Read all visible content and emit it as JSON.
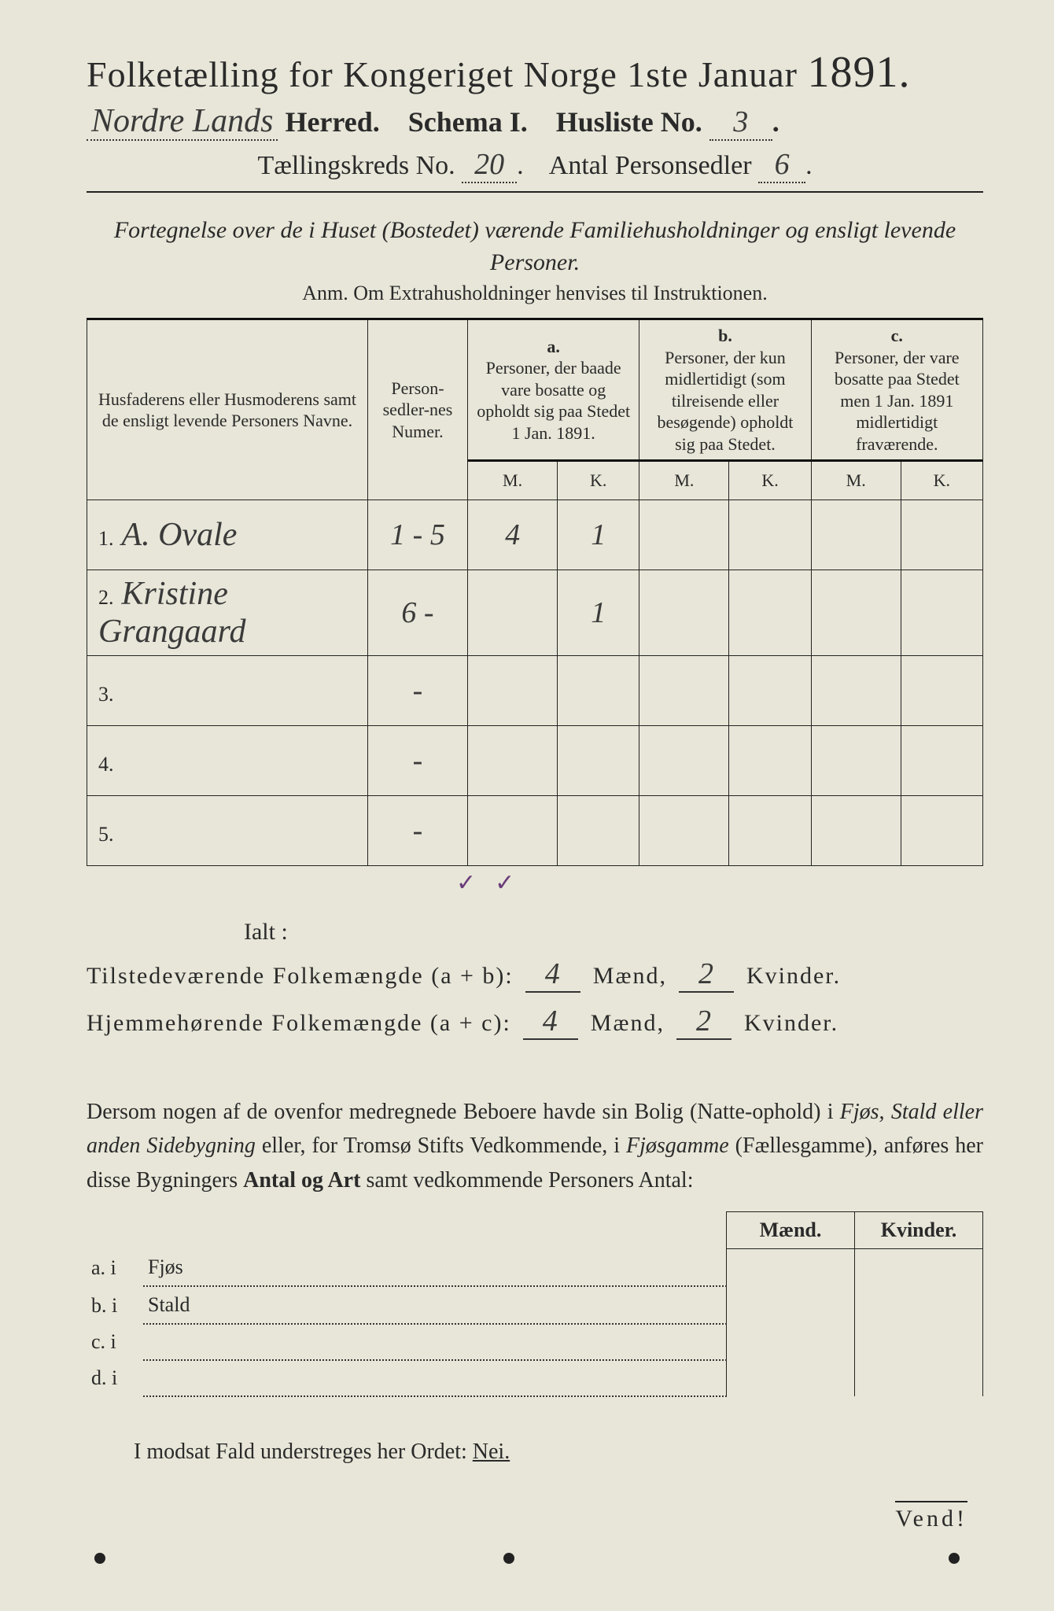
{
  "header": {
    "title_prefix": "Folketælling for Kongeriget Norge 1ste Januar",
    "year": "1891.",
    "herred_hand": "Nordre Lands",
    "herred_label": "Herred.",
    "schema_label": "Schema I.",
    "husliste_label": "Husliste No.",
    "husliste_no": "3",
    "kreds_label": "Tællingskreds No.",
    "kreds_no": "20",
    "personsedler_label": "Antal Personsedler",
    "personsedler_no": "6"
  },
  "subhead": {
    "line": "Fortegnelse over de i Huset (Bostedet) værende Familiehusholdninger og ensligt levende Personer.",
    "anm": "Anm.  Om Extrahusholdninger henvises til Instruktionen."
  },
  "table": {
    "col_name": "Husfaderens eller Husmoderens samt de ensligt levende Personers Navne.",
    "col_num": "Person-sedler-nes Numer.",
    "a_label": "a.",
    "a_text": "Personer, der baade vare bosatte og opholdt sig paa Stedet 1 Jan. 1891.",
    "b_label": "b.",
    "b_text": "Personer, der kun midlertidigt (som tilreisende eller besøgende) opholdt sig paa Stedet.",
    "c_label": "c.",
    "c_text": "Personer, der vare bosatte paa Stedet men 1 Jan. 1891 midlertidigt fraværende.",
    "m": "M.",
    "k": "K.",
    "rows": [
      {
        "n": "1.",
        "name": "A. Ovale",
        "num": "1 - 5",
        "am": "4",
        "ak": "1",
        "bm": "",
        "bk": "",
        "cm": "",
        "ck": ""
      },
      {
        "n": "2.",
        "name": "Kristine Grangaard",
        "num": "6 -",
        "am": "",
        "ak": "1",
        "bm": "",
        "bk": "",
        "cm": "",
        "ck": ""
      },
      {
        "n": "3.",
        "name": "",
        "num": "-",
        "am": "",
        "ak": "",
        "bm": "",
        "bk": "",
        "cm": "",
        "ck": ""
      },
      {
        "n": "4.",
        "name": "",
        "num": "-",
        "am": "",
        "ak": "",
        "bm": "",
        "bk": "",
        "cm": "",
        "ck": ""
      },
      {
        "n": "5.",
        "name": "",
        "num": "-",
        "am": "",
        "ak": "",
        "bm": "",
        "bk": "",
        "cm": "",
        "ck": ""
      }
    ],
    "tick_a": "✓",
    "tick_b": "✓"
  },
  "totals": {
    "ialt": "Ialt :",
    "line1_label": "Tilstedeværende Folkemængde (a + b):",
    "line2_label": "Hjemmehørende Folkemængde (a + c):",
    "maend": "Mænd,",
    "kvinder": "Kvinder.",
    "l1_m": "4",
    "l1_k": "2",
    "l2_m": "4",
    "l2_k": "2"
  },
  "paragraph": {
    "text1": "Dersom nogen af de ovenfor medregnede Beboere havde sin Bolig (Natte-ophold) i ",
    "em1": "Fjøs, Stald eller anden Sidebygning",
    "text2": " eller, for Tromsø Stifts Vedkommende, i ",
    "em2": "Fjøsgamme",
    "text3": " (Fællesgamme), anføres her disse Bygningers ",
    "bold1": "Antal og Art",
    "text4": " samt vedkommende Personers Antal:"
  },
  "sidetable": {
    "maend": "Mænd.",
    "kvinder": "Kvinder.",
    "rows": [
      {
        "l": "a.  i",
        "label": "Fjøs"
      },
      {
        "l": "b.  i",
        "label": "Stald"
      },
      {
        "l": "c.  i",
        "label": ""
      },
      {
        "l": "d.  i",
        "label": ""
      }
    ]
  },
  "footer": {
    "modsat": "I modsat Fald understreges her Ordet: ",
    "nei": "Nei.",
    "vend": "Vend!"
  },
  "colors": {
    "page_bg": "#e8e6d8",
    "text": "#2a2a2a",
    "tick": "#6a3d7a"
  }
}
